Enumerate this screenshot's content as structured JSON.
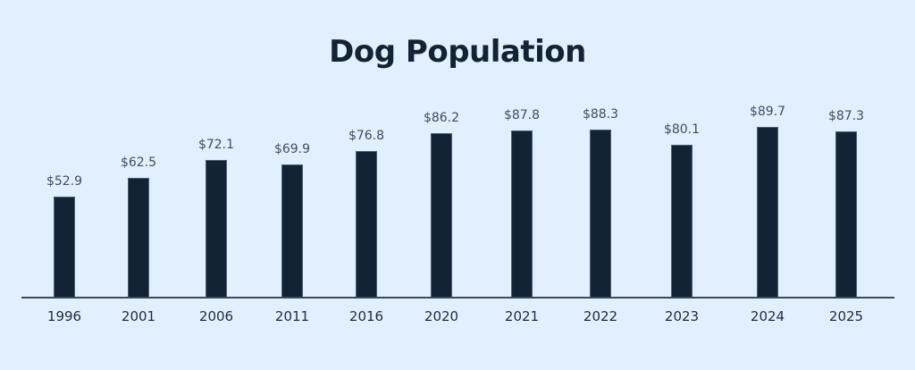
{
  "chart_data": {
    "type": "bar",
    "title": "Dog Population",
    "xlabel": "",
    "ylabel": "",
    "categories": [
      "1996",
      "2001",
      "2006",
      "2011",
      "2016",
      "2020",
      "2021",
      "2022",
      "2023",
      "2024",
      "2025"
    ],
    "values": [
      52.9,
      62.5,
      72.1,
      69.9,
      76.8,
      86.2,
      87.8,
      88.3,
      80.1,
      89.7,
      87.3
    ],
    "value_labels": [
      "$52.9",
      "$62.5",
      "$72.1",
      "$69.9",
      "$76.8",
      "$86.2",
      "$87.8",
      "$88.3",
      "$80.1",
      "$89.7",
      "$87.3"
    ],
    "ylim": [
      0,
      100
    ],
    "grid": false,
    "legend": null,
    "colors": {
      "bar": "#132335",
      "background": "#e2efff",
      "text": "#132335"
    }
  }
}
